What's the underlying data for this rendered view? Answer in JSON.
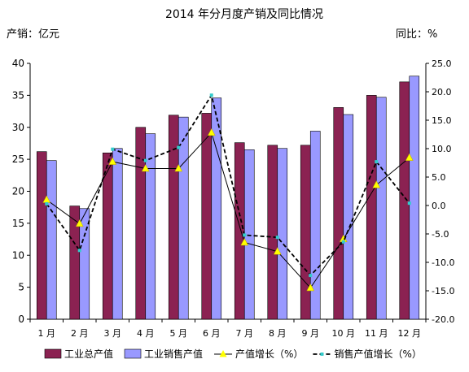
{
  "chart_data": {
    "type": "bar",
    "title": "2014 年分月度产销及同比情况",
    "ylabel_left": "产销：亿元",
    "ylabel_right": "同比：%",
    "categories": [
      "1 月",
      "2 月",
      "3 月",
      "4 月",
      "5 月",
      "6 月",
      "7 月",
      "8 月",
      "9 月",
      "10 月",
      "11 月",
      "12 月"
    ],
    "left_axis": {
      "min": 0,
      "max": 40,
      "ticks": [
        "0",
        "5",
        "10",
        "15",
        "20",
        "25",
        "30",
        "35",
        "40"
      ]
    },
    "right_axis": {
      "min": -20,
      "max": 25,
      "ticks": [
        "-20.0",
        "-15.0",
        "-10.0",
        "-5.0",
        "0.0",
        "5.0",
        "10.0",
        "15.0",
        "20.0",
        "25.0"
      ]
    },
    "bar_series": [
      {
        "name": "工业总产值",
        "color": "#8B2252",
        "values": [
          26.2,
          17.7,
          26.0,
          30.0,
          31.9,
          32.2,
          27.6,
          27.2,
          27.2,
          33.1,
          35.0,
          37.1
        ]
      },
      {
        "name": "工业销售产值",
        "color": "#9999FF",
        "values": [
          24.8,
          17.3,
          26.7,
          29.0,
          31.6,
          34.6,
          26.5,
          26.7,
          29.4,
          32.0,
          34.7,
          38.0
        ]
      }
    ],
    "line_series": [
      {
        "name": "产值增长（%）",
        "color": "#000000",
        "marker_color": "#FFFF00",
        "dashed": false,
        "values": [
          1.0,
          -3.2,
          7.7,
          6.5,
          6.5,
          12.8,
          -6.5,
          -8.1,
          -14.5,
          -5.9,
          3.6,
          8.4
        ]
      },
      {
        "name": "销售产值增长（%）",
        "color": "#000000",
        "marker_color": "#33CCCC",
        "dashed": true,
        "values": [
          0.3,
          -7.9,
          9.9,
          7.9,
          10.2,
          19.4,
          -5.2,
          -5.6,
          -12.3,
          -6.4,
          7.7,
          0.4
        ]
      }
    ]
  }
}
